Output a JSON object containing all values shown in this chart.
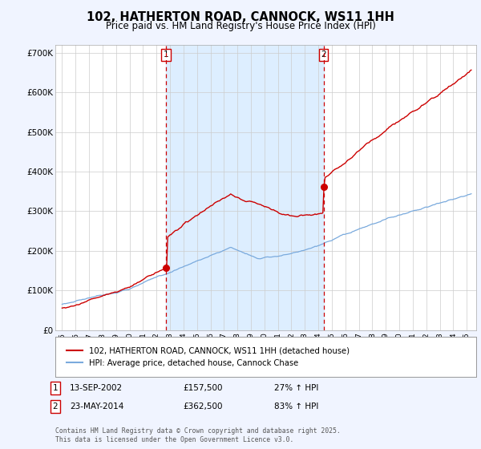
{
  "title": "102, HATHERTON ROAD, CANNOCK, WS11 1HH",
  "subtitle": "Price paid vs. HM Land Registry's House Price Index (HPI)",
  "title_fontsize": 10.5,
  "subtitle_fontsize": 8.5,
  "background_color": "#f0f4ff",
  "plot_bg_color": "#ffffff",
  "shaded_region_color": "#ddeeff",
  "sale1_date": 2002.71,
  "sale1_price": 157500,
  "sale1_label": "1",
  "sale2_date": 2014.38,
  "sale2_price": 362500,
  "sale2_label": "2",
  "legend_entry1": "102, HATHERTON ROAD, CANNOCK, WS11 1HH (detached house)",
  "legend_entry2": "HPI: Average price, detached house, Cannock Chase",
  "footer": "Contains HM Land Registry data © Crown copyright and database right 2025.\nThis data is licensed under the Open Government Licence v3.0.",
  "hpi_color": "#7aaadd",
  "property_color": "#cc0000",
  "vline_color": "#cc0000",
  "ylim": [
    0,
    720000
  ],
  "yticks": [
    0,
    100000,
    200000,
    300000,
    400000,
    500000,
    600000,
    700000
  ],
  "ytick_labels": [
    "£0",
    "£100K",
    "£200K",
    "£300K",
    "£400K",
    "£500K",
    "£600K",
    "£700K"
  ],
  "xlim_start": 1994.5,
  "xlim_end": 2025.7,
  "xticks": [
    1995,
    1996,
    1997,
    1998,
    1999,
    2000,
    2001,
    2002,
    2003,
    2004,
    2005,
    2006,
    2007,
    2008,
    2009,
    2010,
    2011,
    2012,
    2013,
    2014,
    2015,
    2016,
    2017,
    2018,
    2019,
    2020,
    2021,
    2022,
    2023,
    2024,
    2025
  ]
}
